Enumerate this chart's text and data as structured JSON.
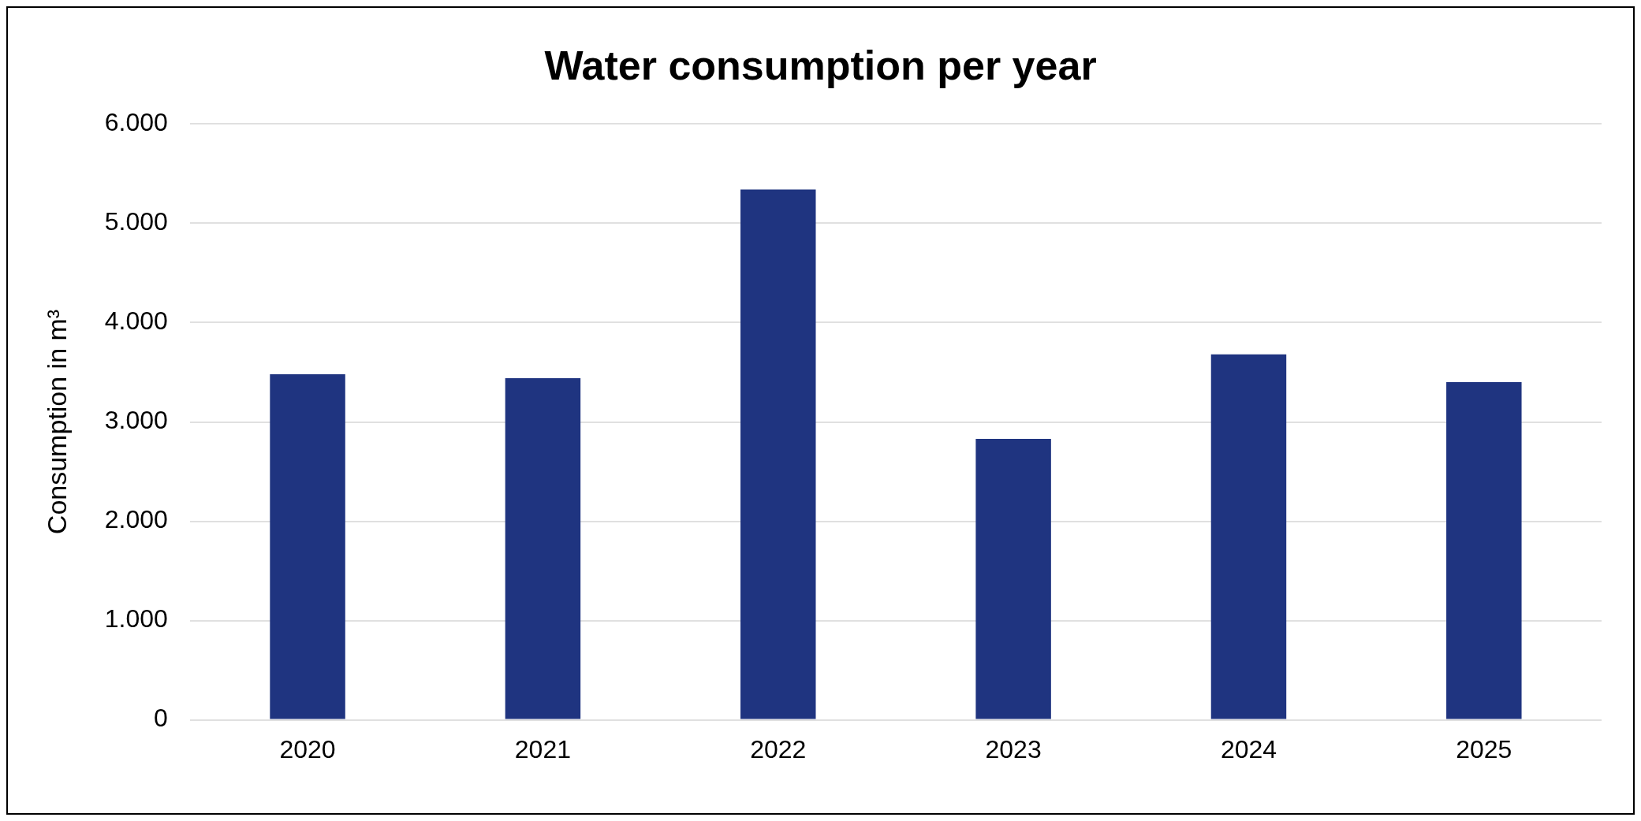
{
  "chart_data": {
    "type": "bar",
    "title": "Water consumption per year",
    "ylabel": "Consumption in m³",
    "categories": [
      "2020",
      "2021",
      "2022",
      "2023",
      "2024",
      "2025"
    ],
    "values": [
      3480,
      3440,
      5340,
      2830,
      3680,
      3400
    ],
    "color": "#1f3480",
    "ylim": [
      0,
      6000
    ],
    "yticks": [
      {
        "value": 0,
        "label": "0"
      },
      {
        "value": 1000,
        "label": "1.000"
      },
      {
        "value": 2000,
        "label": "2.000"
      },
      {
        "value": 3000,
        "label": "3.000"
      },
      {
        "value": 4000,
        "label": "4.000"
      },
      {
        "value": 5000,
        "label": "5.000"
      },
      {
        "value": 6000,
        "label": "6.000"
      }
    ],
    "grid": "y",
    "legend": false
  }
}
